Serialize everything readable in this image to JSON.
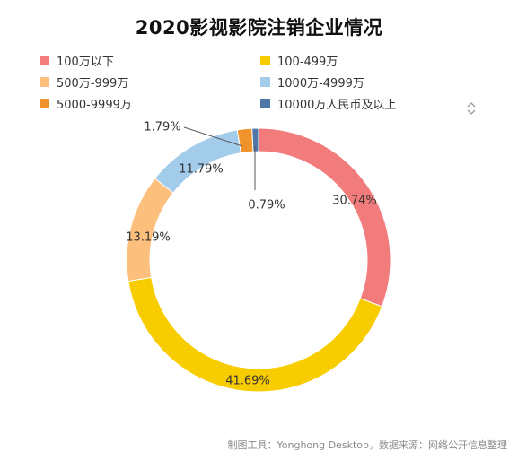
{
  "title": "2020影视影院注销企业情况",
  "footer": "制图工具：Yonghong Desktop，数据来源：网络公开信息整理",
  "chart_data": {
    "type": "pie",
    "variant": "donut",
    "title": "2020影视影院注销企业情况",
    "legend_position": "top",
    "series": [
      {
        "name": "100万以下",
        "value": 30.74,
        "label": "30.74%",
        "color": "#F27B7B"
      },
      {
        "name": "100-499万",
        "value": 41.69,
        "label": "41.69%",
        "color": "#F8CD00"
      },
      {
        "name": "500万-999万",
        "value": 13.19,
        "label": "13.19%",
        "color": "#FCBF7C"
      },
      {
        "name": "1000万-4999万",
        "value": 11.79,
        "label": "11.79%",
        "color": "#A3CCEB"
      },
      {
        "name": "5000-9999万",
        "value": 1.79,
        "label": "1.79%",
        "color": "#F0932B"
      },
      {
        "name": "10000万人民币及以上",
        "value": 0.79,
        "label": "0.79%",
        "color": "#4E76A6"
      }
    ]
  }
}
